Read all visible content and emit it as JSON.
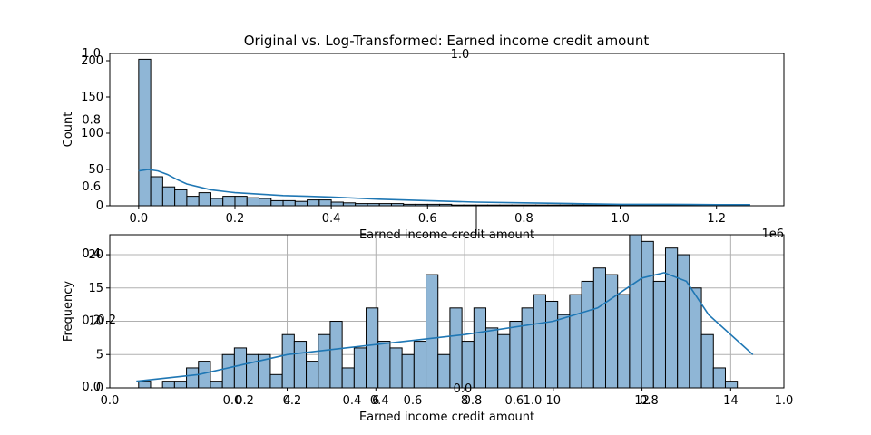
{
  "figure": {
    "title": "Original vs. Log-Transformed: Earned income credit amount",
    "bar_color": "#8fb6d6",
    "bar_edge": "#000000",
    "kde_color": "#1f77b4",
    "grid_color": "#b0b0b0"
  },
  "chart_data": [
    {
      "type": "bar",
      "panel": "original",
      "title": "",
      "xlabel": "Earned income credit amount",
      "ylabel": "Count",
      "x_offset_label": "1e6",
      "xlim": [
        -0.06,
        1.34
      ],
      "ylim": [
        0,
        210
      ],
      "xticks": [
        0.0,
        0.2,
        0.4,
        0.6,
        0.8,
        1.0,
        1.2
      ],
      "xtick_labels": [
        "0.0",
        "0.2",
        "0.4",
        "0.6",
        "0.8",
        "1.0",
        "1.2"
      ],
      "yticks": [
        0,
        50,
        100,
        150,
        200
      ],
      "ytick_labels": [
        "0",
        "50",
        "100",
        "150",
        "200"
      ],
      "grid": false,
      "bin_start": 0.0,
      "bin_width": 0.025,
      "counts": [
        202,
        40,
        26,
        22,
        13,
        18,
        10,
        13,
        13,
        11,
        10,
        7,
        7,
        6,
        8,
        8,
        5,
        4,
        3,
        3,
        3,
        3,
        2,
        2,
        2,
        2,
        1,
        1,
        1,
        1,
        1,
        1,
        1,
        1,
        1,
        1,
        1,
        1,
        1,
        1,
        1,
        1,
        1,
        1,
        1,
        1,
        1,
        1,
        1,
        1
      ],
      "kde_x": [
        0.0,
        0.02,
        0.04,
        0.06,
        0.08,
        0.1,
        0.15,
        0.2,
        0.25,
        0.3,
        0.35,
        0.4,
        0.5,
        0.6,
        0.7,
        0.8,
        0.9,
        1.0,
        1.1,
        1.2,
        1.27
      ],
      "kde_y": [
        48,
        50,
        48,
        43,
        36,
        30,
        22,
        18,
        16,
        14,
        13,
        12,
        9,
        7,
        5,
        4,
        3,
        2,
        2,
        1.5,
        1.5
      ]
    },
    {
      "type": "bar",
      "panel": "log-transformed",
      "title": "",
      "xlabel": "Earned income credit amount",
      "ylabel": "Frequency",
      "xlim": [
        0,
        15.2
      ],
      "ylim": [
        0,
        23
      ],
      "xticks": [
        4,
        6,
        8,
        10,
        12,
        14
      ],
      "xtick_labels": [
        "4",
        "6",
        "8",
        "10",
        "12",
        "14"
      ],
      "yticks": [
        0,
        5,
        10,
        15,
        20
      ],
      "ytick_labels": [
        "0",
        "5",
        "10",
        "15",
        "20"
      ],
      "grid": true,
      "bin_start": 0.65,
      "bin_width": 0.27,
      "counts": [
        1,
        0,
        1,
        1,
        3,
        4,
        1,
        5,
        6,
        5,
        5,
        2,
        8,
        7,
        4,
        8,
        10,
        3,
        6,
        12,
        7,
        6,
        5,
        7,
        17,
        5,
        12,
        7,
        12,
        9,
        8,
        10,
        12,
        14,
        13,
        11,
        14,
        16,
        18,
        17,
        14,
        23,
        22,
        16,
        21,
        20,
        15,
        8,
        3,
        1
      ],
      "kde_x": [
        0.6,
        2,
        4,
        6,
        8,
        10,
        11,
        12,
        12.5,
        13,
        13.5,
        14.5
      ],
      "kde_y": [
        1,
        2,
        5,
        6.5,
        8,
        10,
        12,
        16.5,
        17.3,
        16,
        11,
        5
      ]
    }
  ],
  "overlay_axes": {
    "top_ylim": [
      0,
      1
    ],
    "top_yticks": [
      "0.0",
      "0.2",
      "0.4",
      "0.6",
      "0.8",
      "1.0"
    ],
    "top_inner_label": "1.0",
    "bottom_xticks": [
      "0.0",
      "0.2",
      "0.4",
      "0.6",
      "0.8",
      "1.0"
    ],
    "bottom_inner_xticks": [
      "0.0",
      "0.2",
      "0.4",
      "0.6",
      "0.8",
      "1.0"
    ],
    "bottom_inner_yticks": [
      "0.4",
      "0.2"
    ],
    "center_label": "0.0"
  }
}
